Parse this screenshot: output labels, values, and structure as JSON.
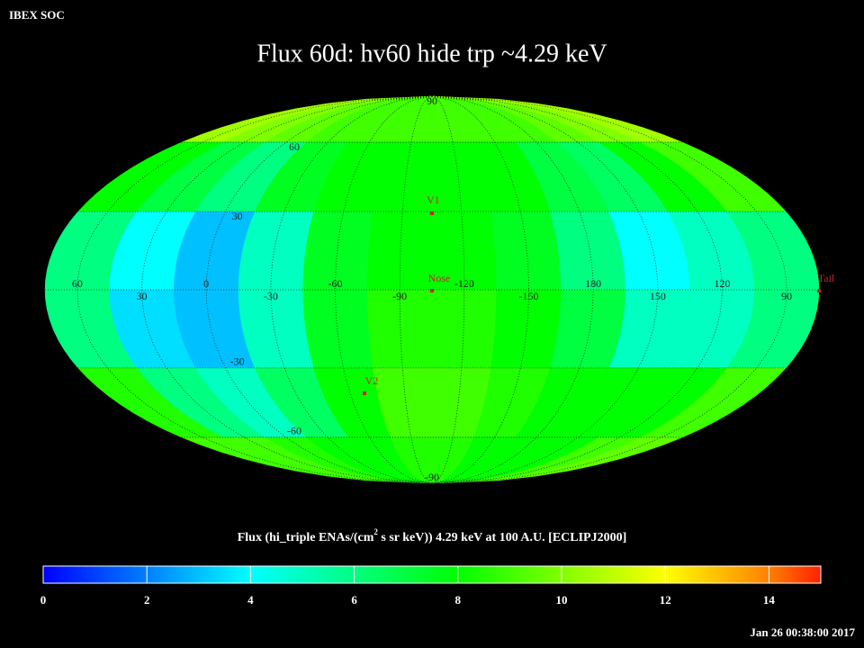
{
  "chart_data": {
    "type": "map",
    "header": "IBEX SOC",
    "title": "Flux   60d: hv60 hide trp ~4.29 keV",
    "colorbar_label": [
      "Flux (hi_triple ENAs/(cm",
      "2",
      " s sr keV))  4.29 keV at 100 A.U. [ECLIPJ2000]"
    ],
    "timestamp": "Jan 26 00:38:00 2017",
    "lon_ticks": [
      60,
      30,
      0,
      -30,
      -60,
      -90,
      -120,
      -150,
      180,
      150,
      120,
      90
    ],
    "lat_ticks": [
      90,
      60,
      30,
      -30,
      -60,
      -90
    ],
    "markers": [
      "V1",
      "Nose",
      "V2",
      "Tail"
    ],
    "values": [
      [
        10.5,
        10,
        9.5,
        9,
        9,
        9,
        9,
        9,
        9,
        9.5,
        10,
        10.5
      ],
      [
        8,
        7,
        6,
        7.5,
        8,
        8,
        8,
        8,
        7,
        6.5,
        8,
        9
      ],
      [
        6,
        4,
        3,
        5,
        7.5,
        8,
        8,
        7.5,
        6,
        4,
        5,
        6
      ],
      [
        6,
        3.5,
        3,
        5,
        7.5,
        8.5,
        8.5,
        8,
        7,
        5,
        5,
        6
      ],
      [
        8.5,
        6,
        5,
        6.5,
        8,
        9,
        9,
        8.5,
        8,
        8,
        8,
        9
      ],
      [
        9,
        9,
        8.5,
        8,
        8,
        8.5,
        8.5,
        8,
        8,
        8,
        9,
        9.5
      ]
    ],
    "clim": [
      0,
      15
    ],
    "cticks": [
      0,
      2,
      4,
      6,
      8,
      10,
      12,
      14
    ],
    "colorscale": [
      [
        0,
        "#0000ff"
      ],
      [
        2,
        "#0080ff"
      ],
      [
        4,
        "#00ffff"
      ],
      [
        6,
        "#00ff80"
      ],
      [
        8,
        "#00ff00"
      ],
      [
        10,
        "#80ff00"
      ],
      [
        12,
        "#ffff00"
      ],
      [
        14,
        "#ff8000"
      ],
      [
        15,
        "#ff2000"
      ]
    ]
  }
}
